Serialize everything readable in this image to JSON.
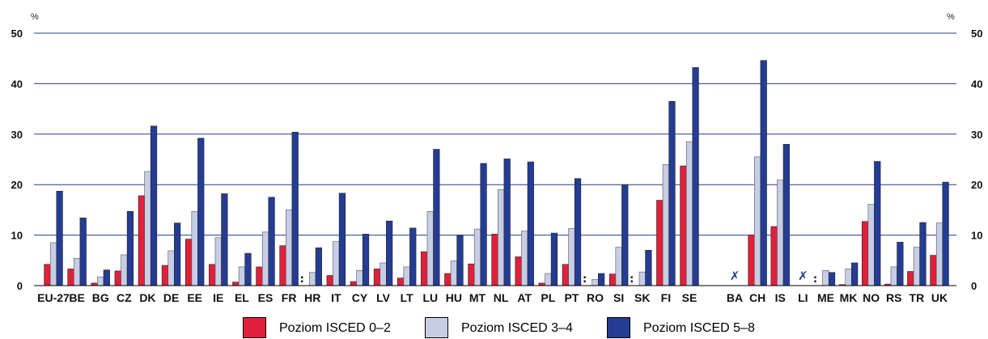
{
  "chart_data": {
    "type": "bar",
    "y_unit_left": "%",
    "y_unit_right": "%",
    "ylim": [
      0,
      50
    ],
    "yticks": [
      0,
      10,
      20,
      30,
      40,
      50
    ],
    "grid": true,
    "legend_position": "bottom",
    "categories": [
      "EU-27",
      "BE",
      "BG",
      "CZ",
      "DK",
      "DE",
      "EE",
      "IE",
      "EL",
      "ES",
      "FR",
      "HR",
      "IT",
      "CY",
      "LV",
      "LT",
      "LU",
      "HU",
      "MT",
      "NL",
      "AT",
      "PL",
      "PT",
      "RO",
      "SI",
      "SK",
      "FI",
      "SE",
      "BA",
      "CH",
      "IS",
      "LI",
      "ME",
      "MK",
      "NO",
      "RS",
      "TR",
      "UK"
    ],
    "group_after_index": 27,
    "series": [
      {
        "name": "Poziom ISCED 0–2",
        "color": "#e0203a",
        "values": [
          4.2,
          3.3,
          0.5,
          2.9,
          17.8,
          4.0,
          9.2,
          4.2,
          0.7,
          3.7,
          7.9,
          null,
          2.0,
          0.8,
          3.3,
          1.5,
          6.7,
          2.4,
          4.3,
          10.2,
          5.7,
          0.5,
          4.2,
          null,
          2.3,
          null,
          16.9,
          23.7,
          null,
          10.0,
          11.7,
          null,
          null,
          0.2,
          12.7,
          0.3,
          2.8,
          6.0
        ]
      },
      {
        "name": "Poziom ISCED 3–4",
        "color": "#c8cde6",
        "values": [
          8.5,
          5.4,
          1.7,
          6.1,
          22.6,
          6.9,
          14.7,
          9.5,
          3.7,
          10.6,
          15.0,
          2.6,
          8.7,
          3.0,
          4.5,
          3.7,
          14.7,
          4.9,
          11.2,
          19.0,
          10.8,
          2.4,
          11.3,
          1.2,
          7.6,
          2.7,
          24.0,
          28.5,
          null,
          25.5,
          20.9,
          null,
          3.0,
          3.3,
          16.1,
          3.7,
          7.6,
          12.4
        ]
      },
      {
        "name": "Poziom ISCED 5–8",
        "color": "#243c94",
        "values": [
          18.7,
          13.4,
          3.1,
          14.7,
          31.6,
          12.4,
          29.2,
          18.2,
          6.4,
          17.5,
          30.4,
          7.5,
          18.3,
          10.2,
          12.8,
          11.4,
          27.0,
          10.0,
          24.2,
          25.1,
          24.5,
          10.4,
          21.2,
          2.4,
          20.0,
          7.0,
          36.5,
          43.2,
          null,
          44.6,
          28.0,
          null,
          2.6,
          4.5,
          24.6,
          8.6,
          12.5,
          20.5
        ]
      }
    ],
    "annotations": [
      {
        "category": "HR",
        "text": ":"
      },
      {
        "category": "RO",
        "text": ":"
      },
      {
        "category": "SK",
        "text": ":"
      },
      {
        "category": "ME",
        "text": ":"
      },
      {
        "category": "BA",
        "text": "✗"
      },
      {
        "category": "LI",
        "text": "✗"
      }
    ]
  }
}
